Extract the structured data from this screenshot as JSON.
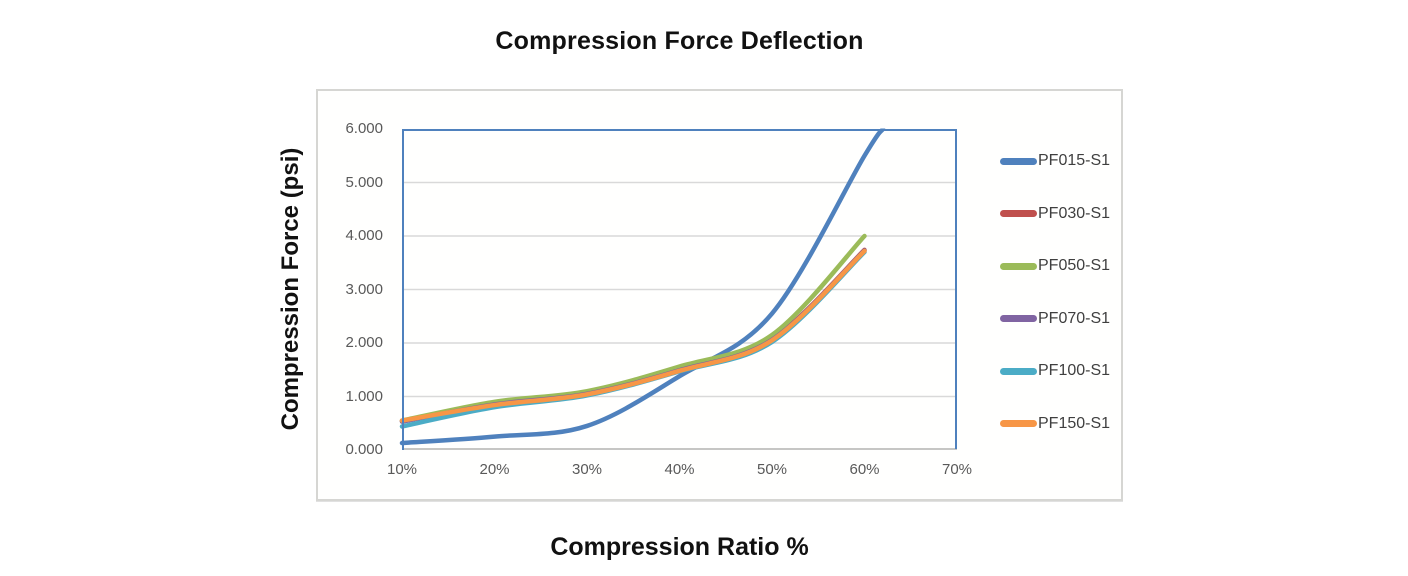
{
  "chart_data": {
    "type": "line",
    "smoothed": true,
    "title": "Compression Force Deflection",
    "xlabel": "Compression Ratio %",
    "ylabel": "Compression Force  (psi)",
    "xlim_percent": [
      10,
      70
    ],
    "ylim": [
      0,
      6
    ],
    "grid": true,
    "legend_position": "right",
    "x_ticks": [
      "10%",
      "20%",
      "30%",
      "40%",
      "50%",
      "60%",
      "70%"
    ],
    "y_ticks": [
      "0.000",
      "1.000",
      "2.000",
      "3.000",
      "4.000",
      "5.000",
      "6.000"
    ],
    "colors": {
      "plot_border": "#4f81bd",
      "gridline": "#d9d9d9",
      "axis_line": "#c6c6c4",
      "tick_label": "#595959",
      "legend_label": "#3f3f3f",
      "title_text": "#111111"
    },
    "series": [
      {
        "name": "PF015-S1",
        "color": "#4f81bd",
        "x_percent": [
          10,
          20,
          30,
          40,
          50,
          60,
          62
        ],
        "values": [
          0.13,
          0.25,
          0.45,
          1.38,
          2.55,
          5.5,
          6.0
        ],
        "note_exits_top_at_percent": 62
      },
      {
        "name": "PF030-S1",
        "color": "#c0504d",
        "x_percent": [
          10,
          20,
          30,
          40,
          50,
          60
        ],
        "values": [
          0.54,
          0.86,
          1.06,
          1.5,
          2.07,
          3.74
        ]
      },
      {
        "name": "PF050-S1",
        "color": "#9bbb59",
        "x_percent": [
          10,
          20,
          30,
          40,
          50,
          60
        ],
        "values": [
          0.55,
          0.9,
          1.1,
          1.56,
          2.15,
          4.0
        ]
      },
      {
        "name": "PF070-S1",
        "color": "#8064a2",
        "x_percent": [
          10,
          20,
          30,
          40,
          50,
          60
        ],
        "values": [
          0.53,
          0.85,
          1.05,
          1.49,
          2.06,
          3.73
        ]
      },
      {
        "name": "PF100-S1",
        "color": "#4bacc6",
        "x_percent": [
          10,
          20,
          30,
          40,
          50,
          60
        ],
        "values": [
          0.44,
          0.8,
          1.02,
          1.47,
          2.02,
          3.7
        ]
      },
      {
        "name": "PF150-S1",
        "color": "#f79646",
        "x_percent": [
          10,
          20,
          30,
          40,
          50,
          60
        ],
        "values": [
          0.55,
          0.84,
          1.04,
          1.48,
          2.05,
          3.72
        ]
      }
    ]
  }
}
